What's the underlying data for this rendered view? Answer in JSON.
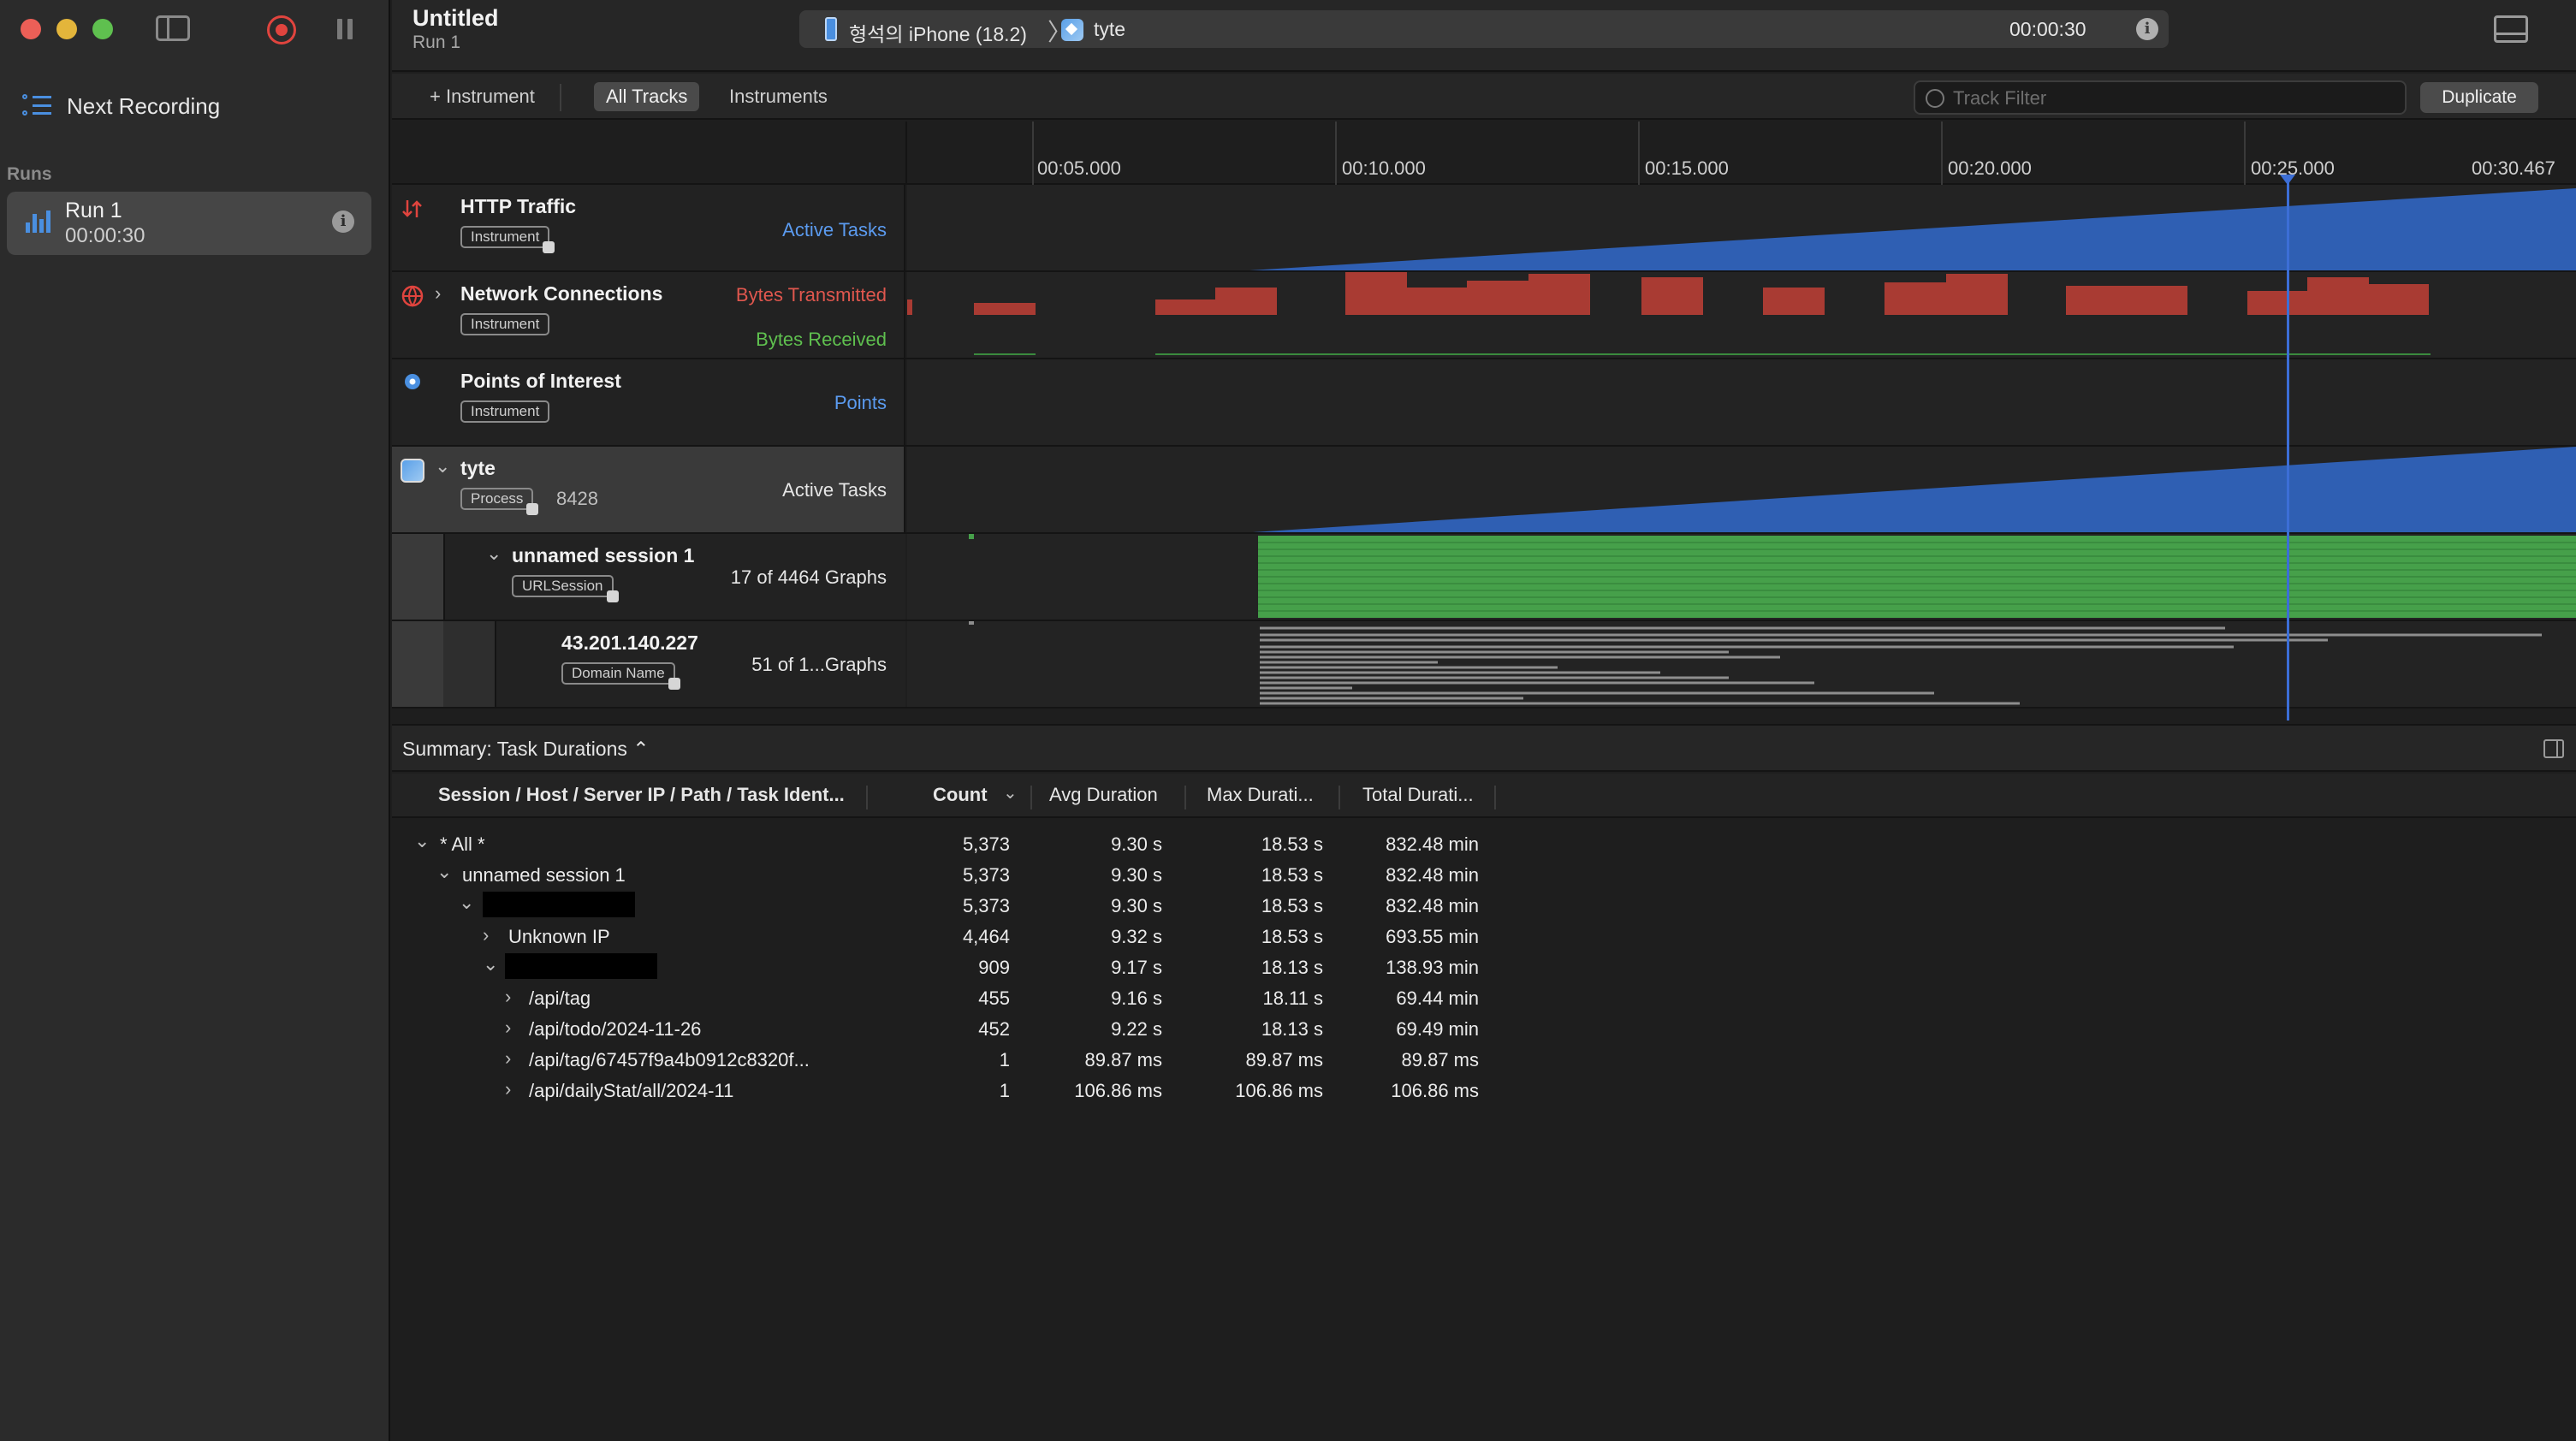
{
  "window": {
    "title": "Untitled",
    "subtitle": "Run 1"
  },
  "sidebar": {
    "next_recording": "Next Recording",
    "runs_header": "Runs",
    "run": {
      "title": "Run 1",
      "duration": "00:00:30"
    }
  },
  "target": {
    "device": "형석의 iPhone (18.2)",
    "separator": "〉",
    "app": "tyte",
    "elapsed": "00:00:30"
  },
  "toolbar": {
    "add_instrument": "+ Instrument",
    "all_tracks": "All Tracks",
    "instruments": "Instruments",
    "filter_placeholder": "Track Filter",
    "duplicate": "Duplicate"
  },
  "ruler": {
    "ticks": [
      "00:05.000",
      "00:10.000",
      "00:15.000",
      "00:20.000",
      "00:25.000",
      "00:30.467"
    ]
  },
  "tracks": [
    {
      "name": "HTTP Traffic",
      "badge": "Instrument",
      "labels": [
        "Active Tasks"
      ]
    },
    {
      "name": "Network Connections",
      "badge": "Instrument",
      "labels": [
        "Bytes Transmitted",
        "Bytes Received"
      ]
    },
    {
      "name": "Points of Interest",
      "badge": "Instrument",
      "labels": [
        "Points"
      ]
    },
    {
      "name": "tyte",
      "badge": "Process",
      "pid": "8428",
      "labels": [
        "Active Tasks"
      ]
    },
    {
      "name": "unnamed session 1",
      "badge": "URLSession",
      "labels": [
        "17 of 4464 Graphs"
      ]
    },
    {
      "name": "43.201.140.227",
      "badge": "Domain Name",
      "labels": [
        "51 of 1...Graphs"
      ]
    }
  ],
  "colors": {
    "active_tasks": "#2f5fb3",
    "bytes_transmitted": "#a93b33",
    "bytes_received": "#4caf50",
    "playhead": "#3c6ed6"
  },
  "summary": {
    "title": "Summary: Task Durations ⌃",
    "columns": [
      "Session / Host / Server IP / Path / Task Ident...",
      "Count",
      "Avg Duration",
      "Max Durati...",
      "Total Durati..."
    ],
    "rows": [
      {
        "label": "* All *",
        "count": "5,373",
        "avg": "9.30 s",
        "max": "18.53 s",
        "total": "832.48 min"
      },
      {
        "label": "unnamed session 1",
        "count": "5,373",
        "avg": "9.30 s",
        "max": "18.53 s",
        "total": "832.48 min"
      },
      {
        "label": "",
        "count": "5,373",
        "avg": "9.30 s",
        "max": "18.53 s",
        "total": "832.48 min"
      },
      {
        "label": "Unknown IP",
        "count": "4,464",
        "avg": "9.32 s",
        "max": "18.53 s",
        "total": "693.55 min"
      },
      {
        "label": "",
        "count": "909",
        "avg": "9.17 s",
        "max": "18.13 s",
        "total": "138.93 min"
      },
      {
        "label": "/api/tag",
        "count": "455",
        "avg": "9.16 s",
        "max": "18.11 s",
        "total": "69.44 min"
      },
      {
        "label": "/api/todo/2024-11-26",
        "count": "452",
        "avg": "9.22 s",
        "max": "18.13 s",
        "total": "69.49 min"
      },
      {
        "label": "/api/tag/67457f9a4b0912c8320f...",
        "count": "1",
        "avg": "89.87 ms",
        "max": "89.87 ms",
        "total": "89.87 ms"
      },
      {
        "label": "/api/dailyStat/all/2024-11",
        "count": "1",
        "avg": "106.86 ms",
        "max": "106.86 ms",
        "total": "106.86 ms"
      }
    ]
  }
}
